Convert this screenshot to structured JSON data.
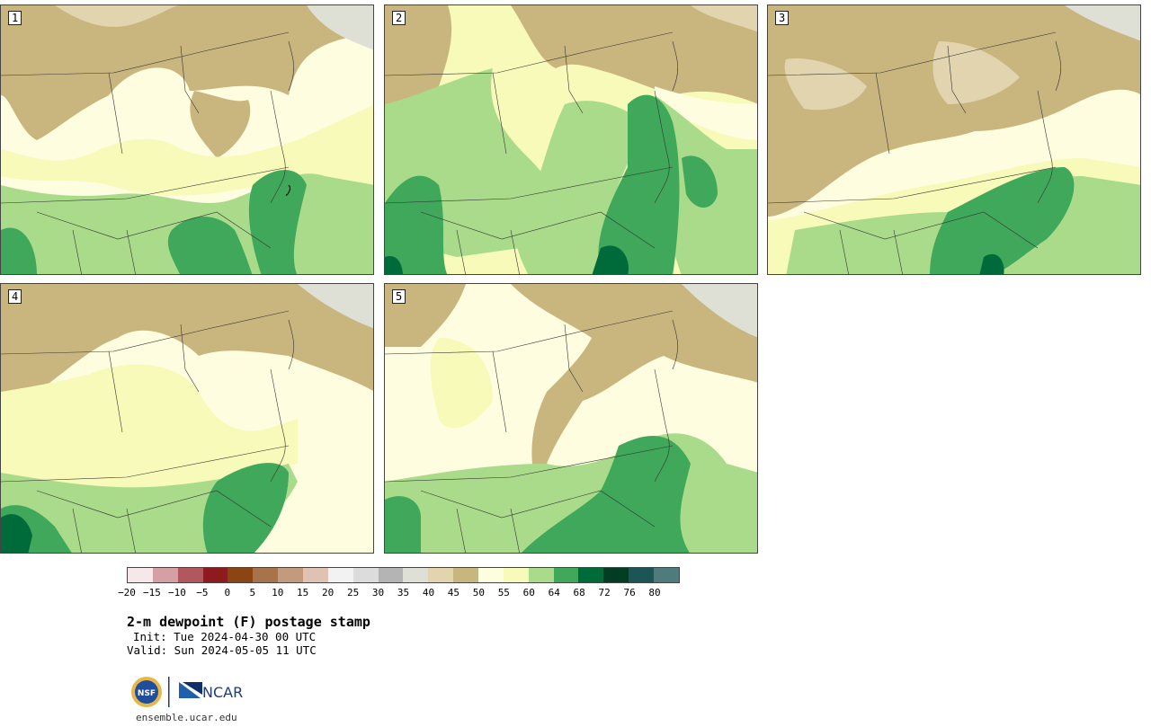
{
  "panels": [
    {
      "label": "1"
    },
    {
      "label": "2"
    },
    {
      "label": "3"
    },
    {
      "label": "4"
    },
    {
      "label": "5"
    }
  ],
  "colorbar": {
    "colors": [
      "#f6e8e8",
      "#d4a0a6",
      "#b0585e",
      "#8c1a1e",
      "#8b4513",
      "#a8734a",
      "#c49a7c",
      "#dfc2b2",
      "#f2f2f2",
      "#dcdcdc",
      "#b4b4b4",
      "#dfe0d5",
      "#e2d4ae",
      "#c9b57e",
      "#fefddf",
      "#f7fab8",
      "#a9db8a",
      "#3fa85a",
      "#006b3a",
      "#003d22",
      "#1b5556",
      "#4f7b7c"
    ],
    "ticks": [
      "−20",
      "−15",
      "−10",
      "−5",
      "0",
      "5",
      "10",
      "15",
      "20",
      "25",
      "30",
      "35",
      "40",
      "45",
      "50",
      "55",
      "60",
      "64",
      "68",
      "72",
      "76",
      "80"
    ]
  },
  "title": "2-m dewpoint (F) postage stamp",
  "init": "Init: Tue 2024-04-30 00 UTC",
  "valid": "Valid: Sun 2024-05-05 11 UTC",
  "logos": {
    "nsf_text": "NSF",
    "ncar_text": "NCAR"
  },
  "site": "ensemble.ucar.edu",
  "field_colors": {
    "dry": "#c9b57e",
    "dry_light": "#e2d4ae",
    "grey": "#dfe0d5",
    "pale": "#fefddf",
    "light_yellow": "#f7fab8",
    "light_green": "#a9db8a",
    "green": "#3fa85a",
    "dark_green": "#006b3a"
  }
}
